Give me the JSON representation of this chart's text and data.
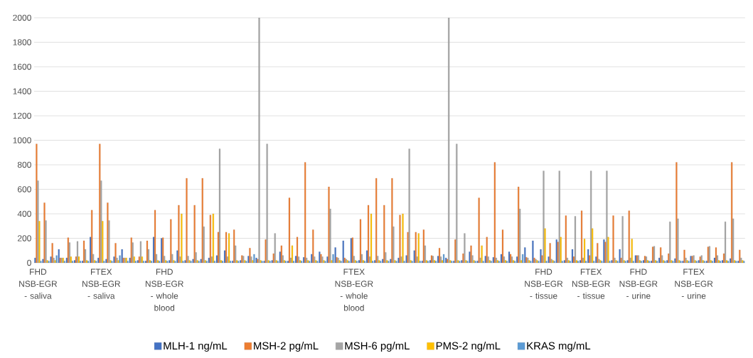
{
  "chart_data": {
    "type": "bar",
    "categories": [
      "FHD NSB-EGR - saliva",
      null,
      null,
      null,
      null,
      null,
      null,
      null,
      "FTEX NSB-EGR - saliva",
      null,
      null,
      null,
      null,
      null,
      null,
      null,
      "FHD NSB-EGR - whole blood",
      null,
      null,
      null,
      null,
      null,
      null,
      null,
      null,
      null,
      null,
      null,
      null,
      null,
      null,
      null,
      null,
      null,
      null,
      null,
      null,
      null,
      null,
      null,
      "FTEX NSB-EGR - whole blood",
      null,
      null,
      null,
      null,
      null,
      null,
      null,
      null,
      null,
      null,
      null,
      null,
      null,
      null,
      null,
      null,
      null,
      null,
      null,
      null,
      null,
      null,
      null,
      "FHD NSB-EGR - tissue",
      null,
      null,
      null,
      null,
      null,
      "FTEX NSB-EGR - tissue",
      null,
      null,
      null,
      null,
      null,
      "FHD NSB-EGR - urine",
      null,
      null,
      null,
      null,
      null,
      null,
      "FTEX NSB-EGR - urine",
      null,
      null,
      null,
      null,
      null,
      null
    ],
    "series": [
      {
        "name": "MLH-1 ng/mL",
        "color": "#4472c4",
        "values": [
          40,
          30,
          50,
          110,
          40,
          20,
          15,
          210,
          40,
          30,
          50,
          110,
          40,
          20,
          15,
          210,
          200,
          20,
          100,
          20,
          30,
          30,
          40,
          60,
          100,
          15,
          20,
          55,
          40,
          15,
          20,
          90,
          15,
          55,
          45,
          70,
          90,
          50,
          125,
          180,
          200,
          20,
          100,
          20,
          30,
          30,
          40,
          60,
          100,
          15,
          20,
          55,
          40,
          15,
          20,
          90,
          15,
          55,
          45,
          70,
          90,
          50,
          125,
          180,
          110,
          50,
          190,
          20,
          110,
          20,
          110,
          50,
          190,
          20,
          110,
          20,
          60,
          20,
          15,
          40,
          20,
          35,
          15,
          55,
          20,
          15,
          40,
          20,
          35,
          15
        ]
      },
      {
        "name": "MSH-2 pg/mL",
        "color": "#ed7d31",
        "values": [
          970,
          490,
          160,
          40,
          205,
          50,
          180,
          430,
          970,
          490,
          160,
          40,
          205,
          50,
          180,
          430,
          205,
          355,
          470,
          690,
          470,
          690,
          390,
          250,
          250,
          270,
          60,
          120,
          30,
          190,
          75,
          140,
          530,
          210,
          820,
          270,
          70,
          620,
          45,
          40,
          205,
          355,
          470,
          690,
          470,
          690,
          390,
          250,
          250,
          270,
          60,
          120,
          30,
          190,
          75,
          140,
          530,
          210,
          820,
          270,
          70,
          620,
          45,
          40,
          60,
          160,
          170,
          385,
          50,
          425,
          60,
          160,
          170,
          385,
          40,
          425,
          60,
          55,
          130,
          125,
          75,
          820,
          105,
          55,
          50,
          130,
          125,
          75,
          820,
          105
        ]
      },
      {
        "name": "MSH-6 pg/mL",
        "color": "#a5a5a5",
        "values": [
          670,
          345,
          40,
          40,
          165,
          175,
          110,
          70,
          670,
          345,
          40,
          40,
          165,
          175,
          110,
          70,
          55,
          70,
          50,
          55,
          85,
          295,
          50,
          930,
          50,
          140,
          55,
          50,
          2000,
          970,
          240,
          60,
          40,
          50,
          40,
          50,
          50,
          440,
          40,
          30,
          55,
          70,
          50,
          55,
          85,
          295,
          50,
          930,
          50,
          140,
          55,
          50,
          2000,
          970,
          240,
          60,
          40,
          50,
          40,
          50,
          50,
          440,
          40,
          30,
          750,
          30,
          750,
          40,
          380,
          40,
          750,
          30,
          750,
          40,
          380,
          40,
          60,
          50,
          135,
          60,
          335,
          360,
          40,
          60,
          60,
          135,
          60,
          335,
          360,
          40
        ]
      },
      {
        "name": "PMS-2 ng/mL",
        "color": "#ffc000",
        "values": [
          340,
          20,
          20,
          40,
          50,
          50,
          20,
          20,
          340,
          20,
          20,
          40,
          50,
          50,
          20,
          20,
          20,
          20,
          400,
          20,
          20,
          20,
          400,
          20,
          240,
          20,
          20,
          20,
          20,
          20,
          20,
          20,
          140,
          20,
          20,
          20,
          20,
          20,
          20,
          20,
          20,
          20,
          400,
          20,
          20,
          20,
          400,
          20,
          240,
          20,
          20,
          20,
          20,
          20,
          20,
          20,
          140,
          20,
          20,
          20,
          20,
          20,
          20,
          20,
          280,
          20,
          210,
          20,
          20,
          195,
          280,
          20,
          210,
          20,
          20,
          195,
          20,
          20,
          20,
          20,
          20,
          20,
          20,
          20,
          20,
          20,
          20,
          20,
          20,
          20
        ]
      },
      {
        "name": "KRAS mg/mL",
        "color": "#5b9bd5",
        "values": [
          15,
          15,
          60,
          15,
          15,
          15,
          15,
          15,
          15,
          15,
          60,
          15,
          15,
          15,
          15,
          15,
          15,
          15,
          15,
          15,
          15,
          15,
          15,
          15,
          15,
          15,
          15,
          70,
          15,
          15,
          15,
          15,
          15,
          15,
          15,
          15,
          15,
          70,
          15,
          15,
          15,
          15,
          15,
          15,
          15,
          15,
          15,
          15,
          15,
          15,
          15,
          70,
          15,
          15,
          15,
          15,
          15,
          15,
          15,
          15,
          15,
          70,
          15,
          15,
          15,
          15,
          15,
          15,
          15,
          15,
          15,
          15,
          15,
          15,
          15,
          15,
          15,
          15,
          15,
          15,
          15,
          15,
          15,
          15,
          15,
          15,
          15,
          15,
          15,
          15
        ]
      }
    ],
    "ylim": [
      0,
      2000
    ],
    "yticks": [
      0,
      200,
      400,
      600,
      800,
      1000,
      1200,
      1400,
      1600,
      1800,
      2000
    ],
    "grid": "y",
    "legend": "bottom"
  }
}
